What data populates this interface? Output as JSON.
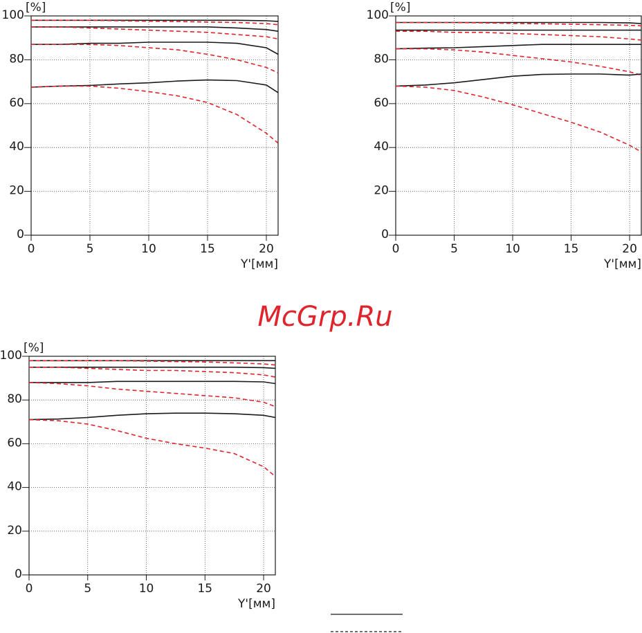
{
  "chart_data": [
    {
      "type": "line",
      "x_label": "Y'[мм]",
      "y_label": "[%]",
      "x": [
        0,
        2.5,
        5,
        7.5,
        10,
        12.5,
        15,
        17.5,
        20,
        21
      ],
      "xlim": [
        0,
        21
      ],
      "ylim": [
        0,
        100
      ],
      "xticks": [
        0,
        5,
        10,
        15,
        20
      ],
      "yticks": [
        0,
        20,
        40,
        60,
        80,
        100
      ],
      "grid": true,
      "series": [
        {
          "color": "#1a1a1a",
          "style": "solid",
          "values": [
            98,
            98,
            98,
            98,
            98,
            98,
            98,
            98,
            97.8,
            97.5
          ]
        },
        {
          "color": "#e0242b",
          "style": "dashed",
          "values": [
            98,
            98,
            98,
            97.8,
            97.6,
            97.4,
            97.2,
            97,
            96.5,
            96
          ]
        },
        {
          "color": "#1a1a1a",
          "style": "solid",
          "values": [
            95,
            95,
            95,
            95,
            95,
            95,
            95,
            94.5,
            93.8,
            93
          ]
        },
        {
          "color": "#e0242b",
          "style": "dashed",
          "values": [
            95,
            95,
            94.5,
            94,
            93.5,
            93,
            92.5,
            91.5,
            90.5,
            89.5
          ]
        },
        {
          "color": "#1a1a1a",
          "style": "solid",
          "values": [
            87,
            87,
            87.5,
            87.5,
            88,
            88,
            88,
            87.5,
            85.5,
            82.5
          ]
        },
        {
          "color": "#e0242b",
          "style": "dashed",
          "values": [
            87,
            87,
            87,
            86.5,
            85.5,
            84.5,
            82.5,
            80,
            76.5,
            74
          ]
        },
        {
          "color": "#1a1a1a",
          "style": "solid",
          "values": [
            67.5,
            68,
            68.3,
            69,
            69.5,
            70.3,
            70.8,
            70.5,
            68.5,
            65
          ]
        },
        {
          "color": "#e0242b",
          "style": "dashed",
          "values": [
            67.5,
            68,
            68,
            67,
            65.5,
            63.5,
            60.5,
            55,
            46.5,
            42
          ]
        }
      ]
    },
    {
      "type": "line",
      "x_label": "Y'[мм]",
      "y_label": "[%]",
      "x": [
        0,
        2.5,
        5,
        7.5,
        10,
        12.5,
        15,
        17.5,
        20,
        21
      ],
      "xlim": [
        0,
        21
      ],
      "ylim": [
        0,
        100
      ],
      "xticks": [
        0,
        5,
        10,
        15,
        20
      ],
      "yticks": [
        0,
        20,
        40,
        60,
        80,
        100
      ],
      "grid": true,
      "series": [
        {
          "color": "#1a1a1a",
          "style": "solid",
          "values": [
            97,
            97,
            97,
            97,
            97,
            97,
            97,
            97,
            96.8,
            96.5
          ]
        },
        {
          "color": "#e0242b",
          "style": "dashed",
          "values": [
            97,
            97,
            97,
            96.8,
            96.6,
            96.4,
            96.2,
            96,
            95.7,
            95.5
          ]
        },
        {
          "color": "#1a1a1a",
          "style": "solid",
          "values": [
            93.5,
            93.5,
            93.5,
            93.5,
            93.5,
            93.5,
            93.5,
            93.5,
            93.5,
            93.5
          ]
        },
        {
          "color": "#e0242b",
          "style": "dashed",
          "values": [
            93,
            93,
            92.5,
            92.5,
            92,
            91.5,
            91,
            90.5,
            89.5,
            89
          ]
        },
        {
          "color": "#1a1a1a",
          "style": "solid",
          "values": [
            85,
            85.3,
            85.5,
            86,
            86.5,
            87,
            87,
            87,
            87,
            87
          ]
        },
        {
          "color": "#e0242b",
          "style": "dashed",
          "values": [
            85,
            85,
            84.5,
            83.5,
            82,
            80.5,
            79,
            77,
            74.5,
            73
          ]
        },
        {
          "color": "#1a1a1a",
          "style": "solid",
          "values": [
            68,
            68.5,
            69.5,
            71,
            72.5,
            73.3,
            73.5,
            73.5,
            73,
            73.5
          ]
        },
        {
          "color": "#e0242b",
          "style": "dashed",
          "values": [
            68,
            67.5,
            66,
            63,
            59.5,
            55.5,
            51.5,
            47,
            41,
            38
          ]
        }
      ]
    },
    {
      "type": "line",
      "x_label": "Y'[мм]",
      "y_label": "[%]",
      "x": [
        0,
        2.5,
        5,
        7.5,
        10,
        12.5,
        15,
        17.5,
        20,
        21
      ],
      "xlim": [
        0,
        21
      ],
      "ylim": [
        0,
        100
      ],
      "xticks": [
        0,
        5,
        10,
        15,
        20
      ],
      "yticks": [
        0,
        20,
        40,
        60,
        80,
        100
      ],
      "grid": true,
      "series": [
        {
          "color": "#1a1a1a",
          "style": "solid",
          "values": [
            98,
            98,
            98,
            98,
            98,
            98,
            98,
            98,
            98,
            98
          ]
        },
        {
          "color": "#e0242b",
          "style": "dashed",
          "values": [
            98,
            98,
            98,
            98,
            97.8,
            97.6,
            97.4,
            97,
            96.5,
            96
          ]
        },
        {
          "color": "#1a1a1a",
          "style": "solid",
          "values": [
            95,
            95,
            95,
            95,
            95,
            95,
            95,
            95,
            94.8,
            94.5
          ]
        },
        {
          "color": "#e0242b",
          "style": "dashed",
          "values": [
            95,
            95,
            94.5,
            94,
            93.5,
            93.5,
            93,
            92.5,
            91.5,
            90.5
          ]
        },
        {
          "color": "#1a1a1a",
          "style": "solid",
          "values": [
            88,
            88,
            88,
            88.5,
            88.5,
            88.5,
            88.5,
            88.5,
            88.3,
            87.5
          ]
        },
        {
          "color": "#e0242b",
          "style": "dashed",
          "values": [
            88,
            87.5,
            86.5,
            85,
            84,
            83,
            82,
            81,
            79,
            77
          ]
        },
        {
          "color": "#1a1a1a",
          "style": "solid",
          "values": [
            71,
            71.3,
            72,
            73,
            73.7,
            74,
            74,
            73.7,
            73,
            72
          ]
        },
        {
          "color": "#e0242b",
          "style": "dashed",
          "values": [
            71,
            70.5,
            69,
            66,
            62.5,
            60,
            58,
            55.5,
            49.5,
            45
          ]
        }
      ]
    }
  ],
  "watermark": "McGrp.Ru"
}
